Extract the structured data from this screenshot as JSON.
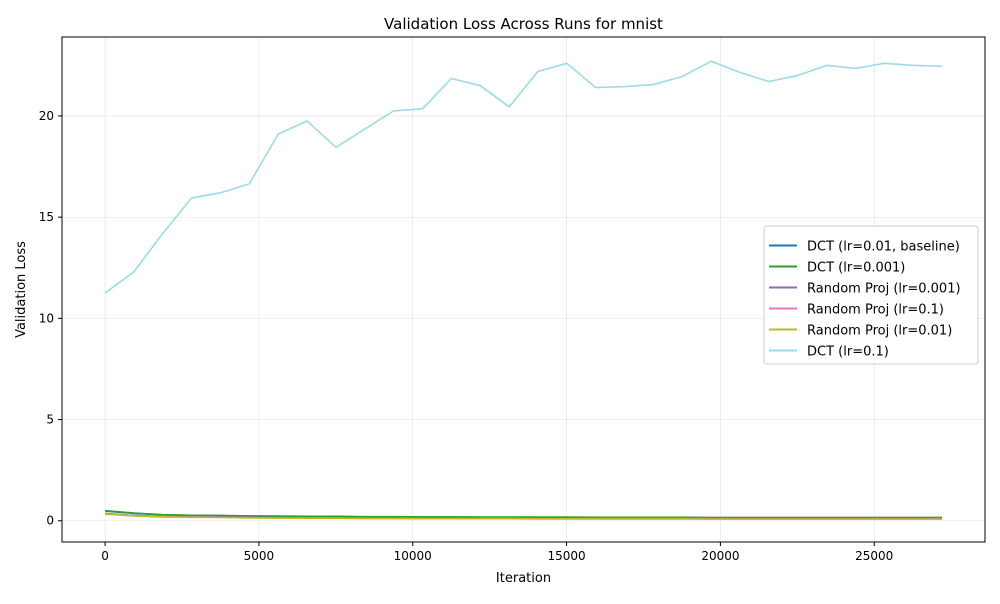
{
  "chart_data": {
    "type": "line",
    "title": "Validation Loss Across Runs for mnist",
    "xlabel": "Iteration",
    "ylabel": "Validation Loss",
    "xlim": [
      -1400,
      28600
    ],
    "ylim": [
      -1.05,
      23.9
    ],
    "xticks": [
      0,
      5000,
      10000,
      15000,
      20000,
      25000
    ],
    "yticks": [
      0,
      5,
      10,
      15,
      20
    ],
    "grid": true,
    "legend_position": "center-right",
    "series": [
      {
        "name": "DCT (lr=0.01, baseline)",
        "color": "#1f77b4",
        "x": [
          0,
          938,
          1876,
          2814,
          3752,
          4690,
          5628,
          6566,
          7504,
          8442,
          9380,
          10318,
          11256,
          12194,
          13132,
          14070,
          15008,
          15946,
          16884,
          17822,
          18760,
          19698,
          20636,
          21574,
          22512,
          23450,
          24388,
          25326,
          26264,
          27202
        ],
        "y": [
          0.48,
          0.36,
          0.29,
          0.26,
          0.25,
          0.23,
          0.22,
          0.21,
          0.21,
          0.19,
          0.19,
          0.18,
          0.18,
          0.17,
          0.17,
          0.17,
          0.17,
          0.16,
          0.16,
          0.16,
          0.16,
          0.15,
          0.15,
          0.15,
          0.15,
          0.15,
          0.15,
          0.15,
          0.15,
          0.15
        ]
      },
      {
        "name": "DCT (lr=0.001)",
        "color": "#2ca02c",
        "x": [
          0,
          938,
          1876,
          2814,
          3752,
          4690,
          5628,
          6566,
          7504,
          8442,
          9380,
          10318,
          11256,
          12194,
          13132,
          14070,
          15008,
          15946,
          16884,
          17822,
          18760,
          19698,
          20636,
          21574,
          22512,
          23450,
          24388,
          25326,
          26264,
          27202
        ],
        "y": [
          0.5,
          0.38,
          0.3,
          0.27,
          0.26,
          0.24,
          0.23,
          0.22,
          0.22,
          0.2,
          0.2,
          0.19,
          0.19,
          0.18,
          0.18,
          0.18,
          0.18,
          0.17,
          0.17,
          0.17,
          0.17,
          0.16,
          0.16,
          0.16,
          0.16,
          0.16,
          0.16,
          0.16,
          0.16,
          0.16
        ]
      },
      {
        "name": "Random Proj (lr=0.001)",
        "color": "#9467bd",
        "x": [
          0,
          938,
          1876,
          2814,
          3752,
          4690,
          5628,
          6566,
          7504,
          8442,
          9380,
          10318,
          11256,
          12194,
          13132,
          14070,
          15008,
          15946,
          16884,
          17822,
          18760,
          19698,
          20636,
          21574,
          22512,
          23450,
          24388,
          25326,
          26264,
          27202
        ],
        "y": [
          0.36,
          0.26,
          0.21,
          0.19,
          0.18,
          0.16,
          0.15,
          0.14,
          0.14,
          0.13,
          0.13,
          0.12,
          0.12,
          0.12,
          0.12,
          0.11,
          0.11,
          0.11,
          0.11,
          0.11,
          0.11,
          0.1,
          0.1,
          0.1,
          0.1,
          0.1,
          0.1,
          0.1,
          0.1,
          0.1
        ]
      },
      {
        "name": "Random Proj (lr=0.1)",
        "color": "#e377c2",
        "x": [
          0,
          938,
          1876,
          2814,
          3752,
          4690,
          5628,
          6566,
          7504,
          8442,
          9380,
          10318,
          11256,
          12194,
          13132,
          14070,
          15008,
          15946,
          16884,
          17822,
          18760,
          19698,
          20636,
          21574,
          22512,
          23450,
          24388,
          25326,
          26264,
          27202
        ],
        "y": [
          0.34,
          0.25,
          0.2,
          0.18,
          0.17,
          0.15,
          0.14,
          0.13,
          0.13,
          0.12,
          0.12,
          0.11,
          0.11,
          0.11,
          0.11,
          0.1,
          0.1,
          0.1,
          0.1,
          0.1,
          0.1,
          0.09,
          0.09,
          0.09,
          0.09,
          0.09,
          0.09,
          0.09,
          0.09,
          0.09
        ]
      },
      {
        "name": "Random Proj (lr=0.01)",
        "color": "#bcbd22",
        "x": [
          0,
          938,
          1876,
          2814,
          3752,
          4690,
          5628,
          6566,
          7504,
          8442,
          9380,
          10318,
          11256,
          12194,
          13132,
          14070,
          15008,
          15946,
          16884,
          17822,
          18760,
          19698,
          20636,
          21574,
          22512,
          23450,
          24388,
          25326,
          26264,
          27202
        ],
        "y": [
          0.33,
          0.24,
          0.19,
          0.17,
          0.16,
          0.14,
          0.13,
          0.12,
          0.12,
          0.11,
          0.11,
          0.1,
          0.1,
          0.1,
          0.1,
          0.09,
          0.09,
          0.09,
          0.09,
          0.09,
          0.09,
          0.08,
          0.08,
          0.08,
          0.08,
          0.08,
          0.08,
          0.08,
          0.08,
          0.08
        ]
      },
      {
        "name": "DCT (lr=0.1)",
        "color": "#9edae5",
        "x": [
          0,
          938,
          1876,
          2814,
          3752,
          4690,
          5628,
          6566,
          7504,
          8442,
          9380,
          10318,
          11256,
          12194,
          13132,
          14070,
          15008,
          15946,
          16884,
          17822,
          18760,
          19698,
          20636,
          21574,
          22512,
          23450,
          24388,
          25326,
          26264,
          27202
        ],
        "y": [
          11.25,
          12.3,
          14.2,
          15.95,
          16.2,
          16.65,
          19.1,
          19.75,
          18.45,
          19.35,
          20.25,
          20.35,
          21.85,
          21.5,
          20.45,
          22.2,
          22.6,
          21.4,
          21.45,
          21.55,
          21.95,
          22.7,
          22.15,
          21.7,
          22.0,
          22.5,
          22.35,
          22.6,
          22.5,
          22.45
        ]
      }
    ]
  }
}
